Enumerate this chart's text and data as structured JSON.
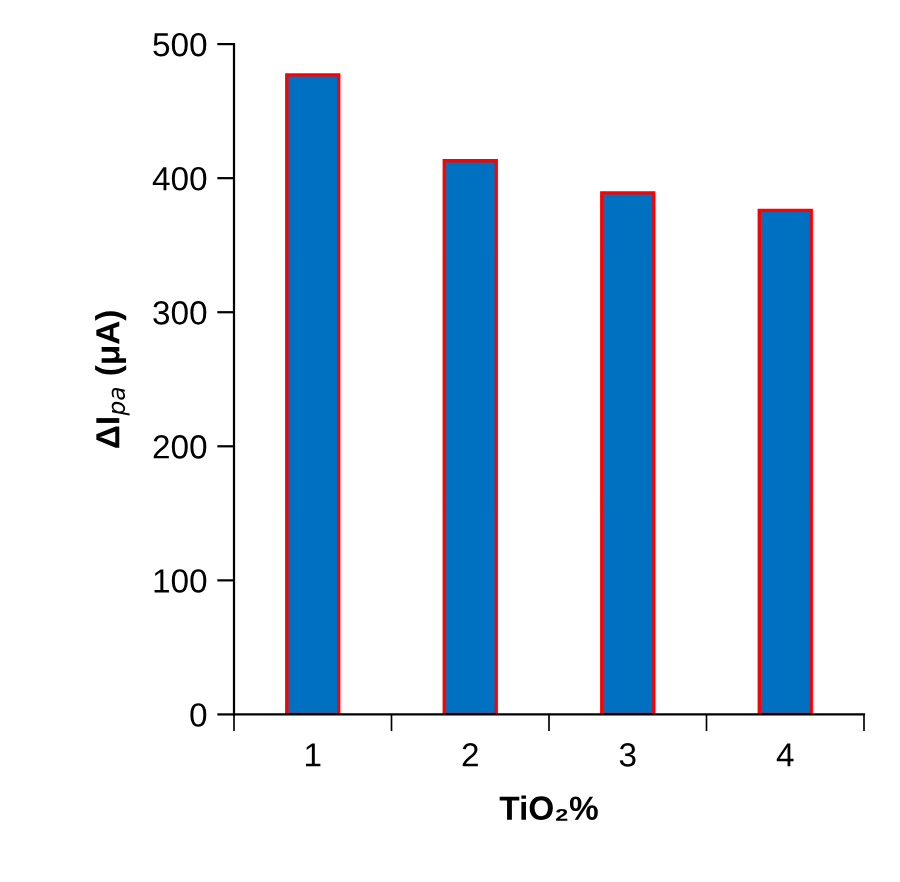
{
  "chart_data": {
    "type": "bar",
    "categories": [
      "1",
      "2",
      "3",
      "4"
    ],
    "values": [
      477,
      413,
      389,
      376
    ],
    "color": "#0070c0",
    "xlabel": "TiO₂%",
    "ylabel": "ΔI$_{pa}$ (μA)",
    "ylim": [
      0,
      500
    ],
    "yticks": [
      0,
      100,
      200,
      300,
      400,
      500
    ],
    "grid": false,
    "legend": false
  }
}
